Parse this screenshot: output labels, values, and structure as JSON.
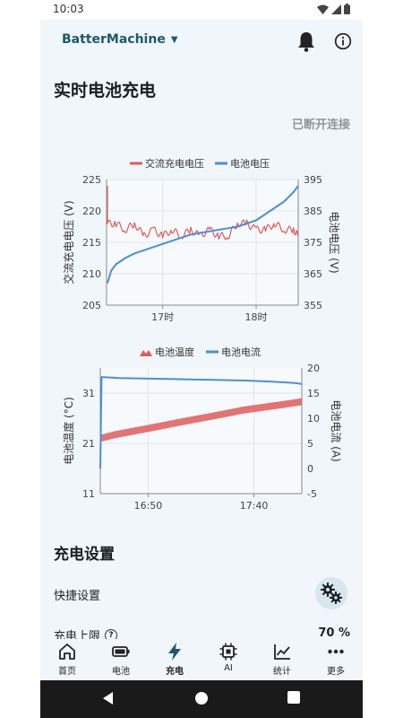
{
  "status": {
    "time": "10:03"
  },
  "app": {
    "title": "BatterMachine"
  },
  "page": {
    "title": "实时电池充电",
    "connection_status": "已断开连接"
  },
  "colors": {
    "accent": "#1b5a6a",
    "red_series": "#e25a5a",
    "blue_series": "#4a8fdc"
  },
  "chart_data": [
    {
      "type": "line",
      "legend_position": "top",
      "series": [
        {
          "name": "交流充电电压",
          "axis": "left",
          "color": "#e25a5a",
          "x": [
            16.41,
            16.5,
            16.6,
            16.7,
            16.8,
            16.9,
            17.0,
            17.1,
            17.2,
            17.3,
            17.4,
            17.5,
            17.6,
            17.7,
            17.8,
            17.9,
            18.0,
            18.1,
            18.2,
            18.3,
            18.4,
            18.45
          ],
          "y": [
            218,
            218,
            217,
            218,
            216,
            217,
            216,
            217,
            216,
            217,
            216,
            217,
            216,
            216,
            218,
            218,
            217,
            217,
            218,
            217,
            217,
            216
          ]
        },
        {
          "name": "电池电压",
          "axis": "right",
          "color": "#4a8fdc",
          "x": [
            16.41,
            16.45,
            16.5,
            16.6,
            16.7,
            16.8,
            16.9,
            17.0,
            17.1,
            17.2,
            17.3,
            17.4,
            17.5,
            17.6,
            17.7,
            17.8,
            17.9,
            18.0,
            18.1,
            18.2,
            18.3,
            18.4,
            18.45
          ],
          "y": [
            362,
            366,
            368,
            370,
            371.5,
            372.5,
            373.5,
            374.5,
            375.5,
            376.5,
            377.5,
            378,
            378.5,
            379,
            379.5,
            380,
            381,
            382,
            384,
            386,
            388,
            391,
            393
          ]
        }
      ],
      "xlim": [
        16.4,
        18.45
      ],
      "x_ticks": [
        {
          "value": 17.0,
          "label": "17时"
        },
        {
          "value": 18.0,
          "label": "18时"
        }
      ],
      "ylim_left": [
        205,
        225
      ],
      "y_ticks_left": [
        "205",
        "210",
        "215",
        "220",
        "225"
      ],
      "ylabel_left": "交流充电电压 (V)",
      "ylim_right": [
        355,
        395
      ],
      "y_ticks_right": [
        "355",
        "365",
        "375",
        "385",
        "395"
      ],
      "ylabel_right": "电池电压 (V)",
      "grid": true
    },
    {
      "type": "line",
      "legend_position": "top",
      "series": [
        {
          "name": "电池温度",
          "axis": "left",
          "color": "#e25a5a",
          "style": "band",
          "x": [
            16.45,
            16.58,
            16.75,
            16.92,
            17.08,
            17.25,
            17.42,
            17.58,
            17.75,
            17.92,
            18.05
          ],
          "y": [
            22,
            22.8,
            23.6,
            24.4,
            25.2,
            26.0,
            26.8,
            27.6,
            28.2,
            28.8,
            29.3
          ]
        },
        {
          "name": "电池电流",
          "axis": "right",
          "color": "#4a8fdc",
          "x": [
            16.45,
            16.46,
            16.6,
            16.8,
            17.0,
            17.2,
            17.4,
            17.6,
            17.8,
            18.0,
            18.05
          ],
          "y": [
            0,
            18.2,
            18,
            17.9,
            17.8,
            17.7,
            17.6,
            17.5,
            17.3,
            17.0,
            16.8
          ]
        }
      ],
      "xlim": [
        16.45,
        18.05
      ],
      "x_ticks": [
        {
          "value": 16.83,
          "label": "16:50"
        },
        {
          "value": 17.67,
          "label": "17:40"
        }
      ],
      "ylim_left": [
        11,
        36
      ],
      "y_ticks_left": [
        "11",
        "21",
        "31"
      ],
      "ylabel_left": "电池温度 (°C)",
      "ylim_right": [
        -5,
        20
      ],
      "y_ticks_right": [
        "-5",
        "0",
        "5",
        "10",
        "15",
        "20"
      ],
      "ylabel_right": "电池电流 (A)",
      "grid": true
    }
  ],
  "settings": {
    "title": "充电设置",
    "quick_settings_label": "快捷设置",
    "charge_limit_label": "充电上限",
    "charge_limit_value": "70 %"
  },
  "nav": {
    "items": [
      {
        "label": "首页",
        "icon": "home-icon"
      },
      {
        "label": "电池",
        "icon": "battery-icon"
      },
      {
        "label": "充电",
        "icon": "bolt-icon"
      },
      {
        "label": "AI",
        "icon": "chip-icon"
      },
      {
        "label": "统计",
        "icon": "stats-icon"
      },
      {
        "label": "更多",
        "icon": "more-icon"
      }
    ],
    "active_index": 2
  }
}
